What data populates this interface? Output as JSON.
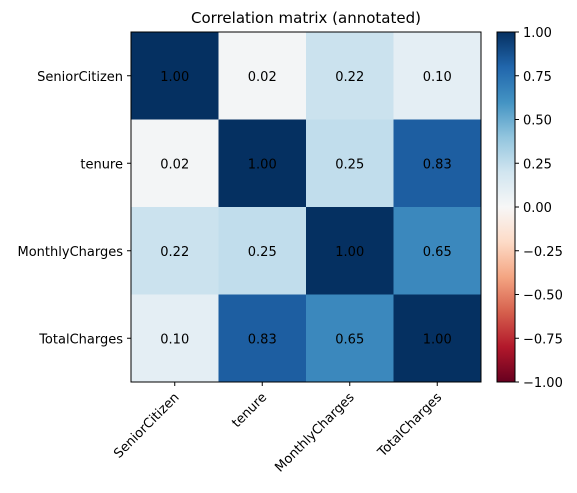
{
  "chart_data": {
    "type": "heatmap",
    "title": "Correlation matrix (annotated)",
    "labels": [
      "SeniorCitizen",
      "tenure",
      "MonthlyCharges",
      "TotalCharges"
    ],
    "matrix": [
      [
        1.0,
        0.02,
        0.22,
        0.1
      ],
      [
        0.02,
        1.0,
        0.25,
        0.83
      ],
      [
        0.22,
        0.25,
        1.0,
        0.65
      ],
      [
        0.1,
        0.83,
        0.65,
        1.0
      ]
    ],
    "annotations": [
      [
        "1.00",
        "0.02",
        "0.22",
        "0.10"
      ],
      [
        "0.02",
        "1.00",
        "0.25",
        "0.83"
      ],
      [
        "0.22",
        "0.25",
        "1.00",
        "0.65"
      ],
      [
        "0.10",
        "0.83",
        "0.65",
        "1.00"
      ]
    ],
    "colorbar": {
      "range": [
        -1,
        1
      ],
      "ticks": [
        1.0,
        0.75,
        0.5,
        0.25,
        0.0,
        -0.25,
        -0.5,
        -0.75,
        -1.0
      ],
      "tick_labels": [
        "1.00",
        "0.75",
        "0.50",
        "0.25",
        "0.00",
        "−0.25",
        "−0.50",
        "−0.75",
        "−1.00"
      ],
      "colormap": "RdBu"
    },
    "colormap_stops": [
      "#67001f",
      "#b2182b",
      "#d6604d",
      "#f4a582",
      "#fddbc7",
      "#f7f7f7",
      "#d1e5f0",
      "#92c5de",
      "#4393c3",
      "#2166ac",
      "#053061"
    ]
  }
}
